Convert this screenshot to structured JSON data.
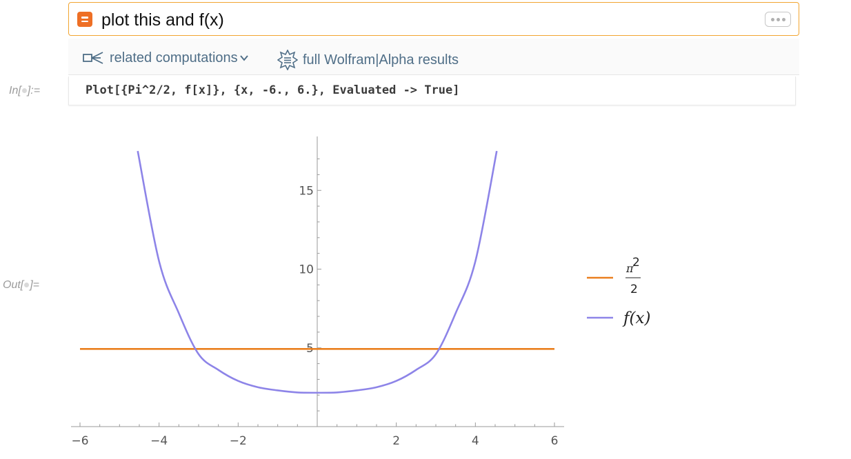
{
  "nl_input": {
    "query": "plot this and f(x)",
    "icon": "wolfram-equal-icon",
    "more_icon": "ellipsis-icon"
  },
  "results_bar": {
    "related_label": "related computations",
    "related_icon": "related-computations-icon",
    "full_results_label": "full Wolfram|Alpha results",
    "full_results_icon": "wolfram-star-icon"
  },
  "cells": {
    "in_label_prefix": "In[",
    "in_label_suffix": "]:=",
    "out_label_prefix": "Out[",
    "out_label_suffix": "]=",
    "input_code": "Plot[{Pi^2/2, f[x]}, {x, -6., 6.}, Evaluated -> True]"
  },
  "colors": {
    "input_border": "#f2a530",
    "wolfram_orange": "#ee6f25",
    "link_blue": "#4f6e87",
    "series_constant": "#ea7f1e",
    "series_function": "#8d84e8"
  },
  "chart_data": {
    "type": "line",
    "xlim": [
      -6,
      6
    ],
    "ylim": [
      0,
      18
    ],
    "x_ticks": [
      -6,
      -4,
      -2,
      0,
      2,
      4,
      6
    ],
    "x_tick_labels": [
      "−6",
      "−4",
      "−2",
      "",
      "2",
      "4",
      "6"
    ],
    "y_ticks": [
      5,
      10,
      15
    ],
    "y_tick_labels": [
      "5",
      "10",
      "15"
    ],
    "series": [
      {
        "name": "π^2/2",
        "legend_text": "π",
        "legend_sup": "2",
        "legend_denominator": "2",
        "x": [
          -6,
          6
        ],
        "y": [
          4.93,
          4.93
        ]
      },
      {
        "name": "f(x)",
        "legend_text": "f(x)",
        "x": [
          -4.54,
          -4.0,
          -3.5,
          -3.0,
          -2.5,
          -2.0,
          -1.5,
          -1.0,
          -0.5,
          0.0,
          0.5,
          1.0,
          1.5,
          2.0,
          2.5,
          3.0,
          3.5,
          4.0,
          4.54
        ],
        "y": [
          17.5,
          10.5,
          7.2,
          4.6,
          3.6,
          2.9,
          2.5,
          2.3,
          2.17,
          2.15,
          2.17,
          2.3,
          2.5,
          2.9,
          3.6,
          4.6,
          7.2,
          10.5,
          17.5
        ]
      }
    ]
  }
}
